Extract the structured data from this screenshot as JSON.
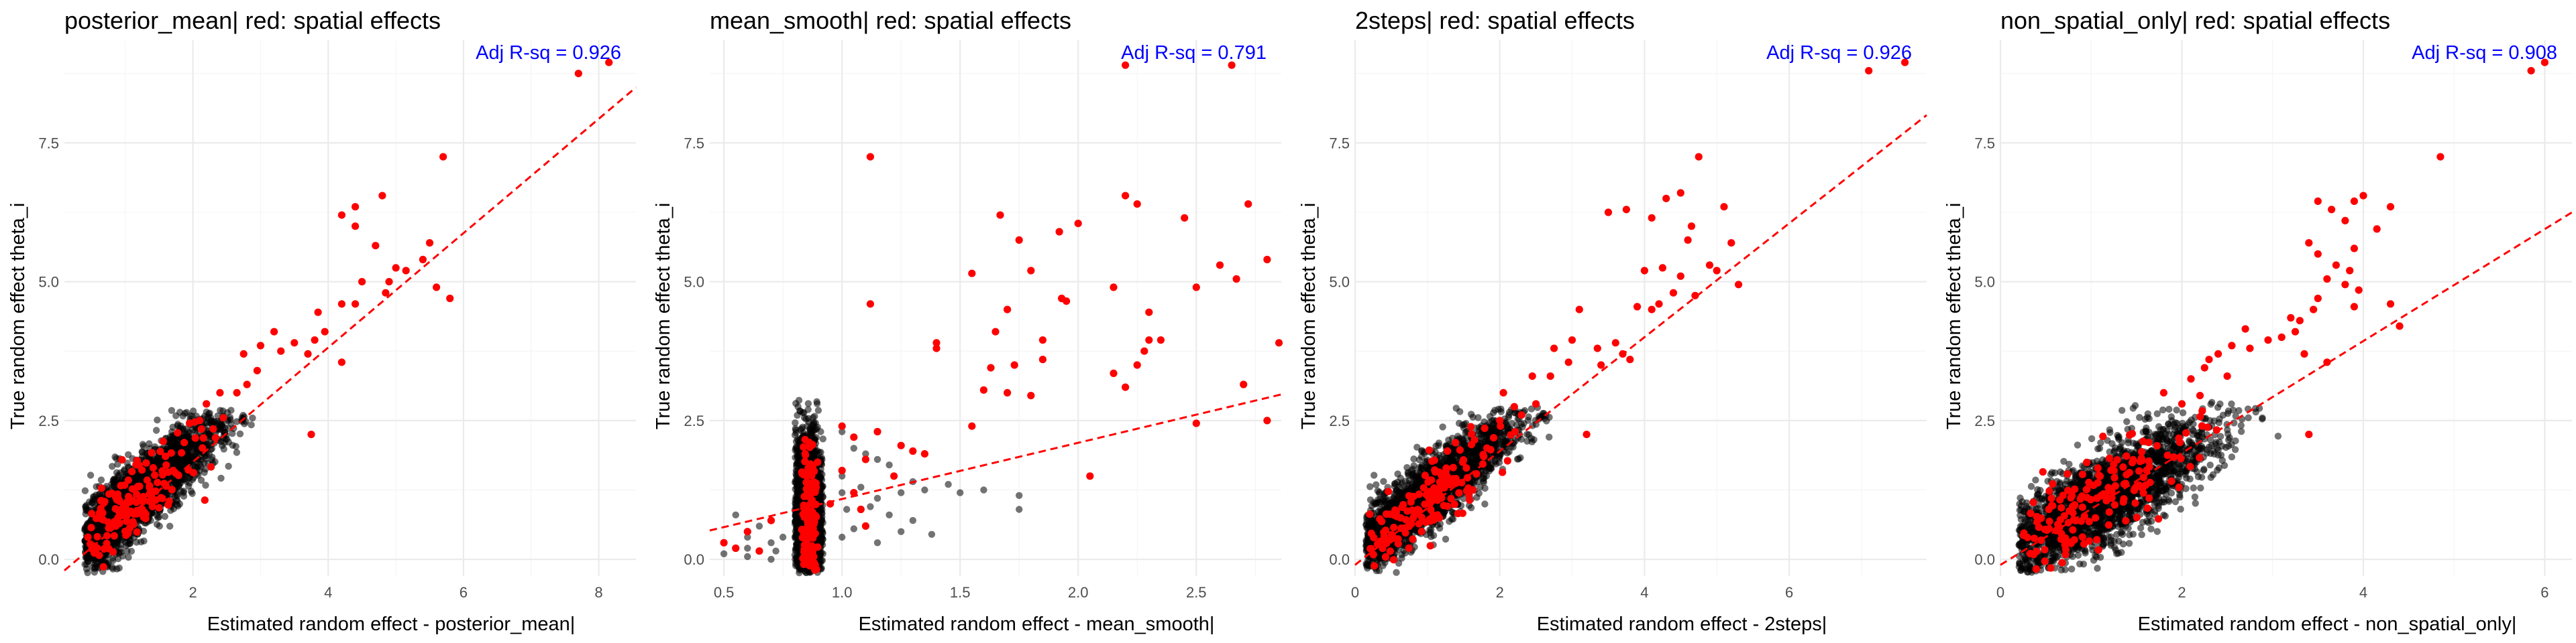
{
  "colors": {
    "highlight": "#ff0000",
    "base_points": "#000000",
    "fit_line": "#ff0000",
    "annotation": "#0000ff",
    "grid": "#ebebeb"
  },
  "chart_data": [
    {
      "type": "scatter",
      "title": "posterior_mean| red: spatial effects",
      "xlabel": "Estimated random effect - posterior_mean|",
      "ylabel": "True random effect theta_i",
      "annotation": "Adj R-sq = 0.926",
      "xlim": [
        0.1,
        8.55
      ],
      "ylim": [
        -0.3,
        9.35
      ],
      "x_ticks": [
        2,
        4,
        6,
        8
      ],
      "x_tick_labels": [
        "2",
        "4",
        "6",
        "8"
      ],
      "y_ticks": [
        0,
        2.5,
        5,
        7.5
      ],
      "y_tick_labels": [
        "0.0",
        "2.5",
        "5.0",
        "7.5"
      ],
      "fit_line": {
        "points": [
          [
            0.1,
            -0.2
          ],
          [
            8.55,
            8.5
          ]
        ],
        "style": "dashed"
      },
      "grid": true,
      "cloud": {
        "x_center": 1.0,
        "x_spread": 0.75,
        "x_min": 0.4,
        "x_max": 3.9,
        "intercept": -0.12,
        "slope": 1.05,
        "resid_sd": 0.35,
        "y_min": -0.25,
        "y_max": 2.7,
        "n": 2200
      },
      "red_cloud": {
        "x_center": 0.95,
        "x_spread": 0.55,
        "x_min": 0.42,
        "x_max": 2.6,
        "intercept": -0.1,
        "slope": 1.02,
        "resid_sd": 0.35,
        "y_min": -0.2,
        "y_max": 2.6,
        "n": 150
      },
      "red_points": [
        [
          7.7,
          8.75
        ],
        [
          8.15,
          8.95
        ],
        [
          5.7,
          7.25
        ],
        [
          4.8,
          6.55
        ],
        [
          4.4,
          6.35
        ],
        [
          4.2,
          6.2
        ],
        [
          4.4,
          6.0
        ],
        [
          4.7,
          5.65
        ],
        [
          5.5,
          5.7
        ],
        [
          5.0,
          5.25
        ],
        [
          5.15,
          5.2
        ],
        [
          4.9,
          5.0
        ],
        [
          5.4,
          5.4
        ],
        [
          4.5,
          5.0
        ],
        [
          4.4,
          4.6
        ],
        [
          4.2,
          4.6
        ],
        [
          5.6,
          4.9
        ],
        [
          5.8,
          4.7
        ],
        [
          4.85,
          4.8
        ],
        [
          3.85,
          4.45
        ],
        [
          3.95,
          4.1
        ],
        [
          3.2,
          4.1
        ],
        [
          3.8,
          3.95
        ],
        [
          3.0,
          3.85
        ],
        [
          2.75,
          3.7
        ],
        [
          3.5,
          3.9
        ],
        [
          3.7,
          3.7
        ],
        [
          3.3,
          3.75
        ],
        [
          4.2,
          3.55
        ],
        [
          2.95,
          3.4
        ],
        [
          2.8,
          3.15
        ],
        [
          2.65,
          3.0
        ],
        [
          2.4,
          3.0
        ],
        [
          3.75,
          2.25
        ],
        [
          2.2,
          2.8
        ],
        [
          2.45,
          2.55
        ],
        [
          2.1,
          2.5
        ],
        [
          2.3,
          2.35
        ],
        [
          1.95,
          2.45
        ]
      ]
    },
    {
      "type": "scatter",
      "title": "mean_smooth| red: spatial effects",
      "xlabel": "Estimated random effect - mean_smooth|",
      "ylabel": "True random effect theta_i",
      "annotation": "Adj R-sq = 0.791",
      "xlim": [
        0.44,
        2.86
      ],
      "ylim": [
        -0.3,
        9.35
      ],
      "x_ticks": [
        0.5,
        1.0,
        1.5,
        2.0,
        2.5
      ],
      "x_tick_labels": [
        "0.5",
        "1.0",
        "1.5",
        "2.0",
        "2.5"
      ],
      "y_ticks": [
        0,
        2.5,
        5,
        7.5
      ],
      "y_tick_labels": [
        "0.0",
        "2.5",
        "5.0",
        "7.5"
      ],
      "fit_line": {
        "points": [
          [
            0.44,
            0.52
          ],
          [
            2.86,
            2.97
          ]
        ],
        "style": "dashed"
      },
      "grid": true,
      "cloud": {
        "x_center": 0.855,
        "x_spread": 0.035,
        "x_min": 0.8,
        "x_max": 0.92,
        "intercept": 0.95,
        "slope": 0,
        "resid_sd": 0.7,
        "y_min": -0.25,
        "y_max": 2.9,
        "n": 1900
      },
      "red_cloud": {
        "x_center": 0.86,
        "x_spread": 0.02,
        "x_min": 0.82,
        "x_max": 0.9,
        "intercept": 0.9,
        "slope": 0,
        "resid_sd": 0.75,
        "y_min": -0.2,
        "y_max": 2.3,
        "n": 120
      },
      "red_points": [
        [
          1.12,
          7.25
        ],
        [
          2.2,
          8.9
        ],
        [
          2.65,
          8.9
        ],
        [
          2.2,
          6.55
        ],
        [
          2.25,
          6.4
        ],
        [
          2.72,
          6.4
        ],
        [
          2.45,
          6.15
        ],
        [
          1.67,
          6.2
        ],
        [
          2.0,
          6.05
        ],
        [
          1.75,
          5.75
        ],
        [
          1.92,
          5.9
        ],
        [
          1.55,
          5.15
        ],
        [
          1.8,
          5.2
        ],
        [
          1.93,
          4.7
        ],
        [
          1.95,
          4.65
        ],
        [
          2.15,
          4.9
        ],
        [
          2.5,
          4.9
        ],
        [
          2.6,
          5.3
        ],
        [
          2.67,
          5.05
        ],
        [
          2.8,
          5.4
        ],
        [
          1.12,
          4.6
        ],
        [
          1.7,
          4.5
        ],
        [
          1.65,
          4.1
        ],
        [
          2.3,
          4.45
        ],
        [
          1.4,
          3.9
        ],
        [
          1.4,
          3.8
        ],
        [
          1.85,
          3.95
        ],
        [
          1.85,
          3.6
        ],
        [
          1.73,
          3.5
        ],
        [
          1.63,
          3.45
        ],
        [
          2.3,
          3.95
        ],
        [
          2.35,
          3.95
        ],
        [
          2.28,
          3.75
        ],
        [
          2.25,
          3.5
        ],
        [
          2.85,
          3.9
        ],
        [
          1.6,
          3.05
        ],
        [
          1.7,
          3.0
        ],
        [
          1.8,
          2.95
        ],
        [
          2.15,
          3.35
        ],
        [
          2.2,
          3.1
        ],
        [
          2.7,
          3.15
        ],
        [
          1.55,
          2.4
        ],
        [
          1.05,
          2.2
        ],
        [
          1.15,
          2.3
        ],
        [
          1.25,
          2.05
        ],
        [
          1.3,
          1.95
        ],
        [
          1.35,
          1.9
        ],
        [
          1.1,
          1.8
        ],
        [
          2.5,
          2.45
        ],
        [
          2.8,
          2.5
        ],
        [
          2.05,
          1.5
        ],
        [
          1.0,
          1.6
        ],
        [
          1.05,
          1.2
        ],
        [
          0.95,
          1.0
        ],
        [
          1.0,
          2.4
        ],
        [
          1.22,
          1.5
        ],
        [
          1.08,
          0.9
        ],
        [
          1.1,
          0.6
        ],
        [
          0.6,
          0.5
        ],
        [
          0.7,
          0.7
        ],
        [
          0.5,
          0.3
        ],
        [
          0.55,
          0.2
        ],
        [
          0.65,
          0.15
        ]
      ],
      "extra_gray_points": [
        [
          1.0,
          2.3
        ],
        [
          1.05,
          2.0
        ],
        [
          1.1,
          1.9
        ],
        [
          1.15,
          1.8
        ],
        [
          1.2,
          1.7
        ],
        [
          1.0,
          1.5
        ],
        [
          1.08,
          1.3
        ],
        [
          1.15,
          1.1
        ],
        [
          1.25,
          1.2
        ],
        [
          1.3,
          1.4
        ],
        [
          1.35,
          1.25
        ],
        [
          1.45,
          1.35
        ],
        [
          1.5,
          1.2
        ],
        [
          1.6,
          1.25
        ],
        [
          1.75,
          1.15
        ],
        [
          1.38,
          0.45
        ],
        [
          1.75,
          0.9
        ],
        [
          1.0,
          1.2
        ],
        [
          1.02,
          0.9
        ],
        [
          1.12,
          0.95
        ],
        [
          1.2,
          0.8
        ],
        [
          1.3,
          0.7
        ],
        [
          1.0,
          0.4
        ],
        [
          1.05,
          0.55
        ],
        [
          1.15,
          0.3
        ],
        [
          1.25,
          0.5
        ],
        [
          0.6,
          0.2
        ],
        [
          0.55,
          0.8
        ],
        [
          0.65,
          0.6
        ],
        [
          0.7,
          0.3
        ],
        [
          0.5,
          0.1
        ],
        [
          0.6,
          0.05
        ],
        [
          0.7,
          0.0
        ],
        [
          0.75,
          0.4
        ],
        [
          0.6,
          0.4
        ],
        [
          0.72,
          0.15
        ]
      ]
    },
    {
      "type": "scatter",
      "title": "2steps| red: spatial effects",
      "xlabel": "Estimated random effect - 2steps|",
      "ylabel": "True random effect theta_i",
      "annotation": "Adj R-sq = 0.926",
      "xlim": [
        0,
        7.9
      ],
      "ylim": [
        -0.3,
        9.35
      ],
      "x_ticks": [
        0,
        2,
        4,
        6
      ],
      "x_tick_labels": [
        "0",
        "2",
        "4",
        "6"
      ],
      "y_ticks": [
        0,
        2.5,
        5,
        7.5
      ],
      "y_tick_labels": [
        "0.0",
        "2.5",
        "5.0",
        "7.5"
      ],
      "fit_line": {
        "points": [
          [
            0,
            -0.1
          ],
          [
            7.9,
            8.0
          ]
        ],
        "style": "dashed"
      },
      "grid": true,
      "cloud": {
        "x_center": 0.8,
        "x_spread": 0.75,
        "x_min": 0.15,
        "x_max": 3.2,
        "intercept": 0.1,
        "slope": 1.05,
        "resid_sd": 0.33,
        "y_min": -0.25,
        "y_max": 2.75,
        "n": 2200
      },
      "red_cloud": {
        "x_center": 0.8,
        "x_spread": 0.6,
        "x_min": 0.2,
        "x_max": 2.3,
        "intercept": 0.1,
        "slope": 1.02,
        "resid_sd": 0.33,
        "y_min": -0.2,
        "y_max": 2.6,
        "n": 150
      },
      "red_points": [
        [
          7.1,
          8.8
        ],
        [
          7.6,
          8.95
        ],
        [
          4.75,
          7.25
        ],
        [
          4.5,
          6.6
        ],
        [
          4.3,
          6.5
        ],
        [
          3.5,
          6.25
        ],
        [
          3.75,
          6.3
        ],
        [
          4.1,
          6.15
        ],
        [
          4.65,
          6.0
        ],
        [
          5.1,
          6.35
        ],
        [
          4.6,
          5.75
        ],
        [
          5.2,
          5.7
        ],
        [
          4.0,
          5.2
        ],
        [
          4.5,
          5.1
        ],
        [
          4.25,
          5.25
        ],
        [
          4.4,
          4.8
        ],
        [
          4.7,
          4.75
        ],
        [
          4.9,
          5.3
        ],
        [
          5.0,
          5.2
        ],
        [
          5.3,
          4.95
        ],
        [
          4.2,
          4.6
        ],
        [
          3.9,
          4.55
        ],
        [
          4.1,
          4.5
        ],
        [
          3.1,
          4.5
        ],
        [
          3.0,
          3.95
        ],
        [
          3.35,
          3.8
        ],
        [
          3.6,
          3.9
        ],
        [
          3.7,
          3.7
        ],
        [
          3.8,
          3.6
        ],
        [
          3.4,
          3.5
        ],
        [
          2.75,
          3.8
        ],
        [
          2.95,
          3.55
        ],
        [
          2.7,
          3.3
        ],
        [
          2.45,
          3.3
        ],
        [
          3.2,
          2.25
        ],
        [
          2.0,
          2.5
        ],
        [
          2.2,
          2.75
        ],
        [
          2.5,
          2.8
        ],
        [
          2.05,
          3.0
        ],
        [
          2.3,
          2.6
        ]
      ]
    },
    {
      "type": "scatter",
      "title": "non_spatial_only| red: spatial effects",
      "xlabel": "Estimated random effect - non_spatial_only|",
      "ylabel": "True random effect theta_i",
      "annotation": "Adj R-sq = 0.908",
      "xlim": [
        0,
        6.3
      ],
      "ylim": [
        -0.3,
        9.35
      ],
      "x_ticks": [
        0,
        2,
        4,
        6
      ],
      "x_tick_labels": [
        "0",
        "2",
        "4",
        "6"
      ],
      "y_ticks": [
        0,
        2.5,
        5,
        7.5
      ],
      "y_tick_labels": [
        "0.0",
        "2.5",
        "5.0",
        "7.5"
      ],
      "fit_line": {
        "points": [
          [
            0,
            -0.1
          ],
          [
            6.3,
            6.25
          ]
        ],
        "style": "dashed"
      },
      "grid": true,
      "cloud": {
        "x_center": 1.05,
        "x_spread": 0.65,
        "x_min": 0.2,
        "x_max": 3.4,
        "intercept": 0.05,
        "slope": 0.92,
        "resid_sd": 0.42,
        "y_min": -0.25,
        "y_max": 2.85,
        "n": 2200
      },
      "red_cloud": {
        "x_center": 0.95,
        "x_spread": 0.55,
        "x_min": 0.25,
        "x_max": 2.8,
        "intercept": 0.05,
        "slope": 0.95,
        "resid_sd": 0.4,
        "y_min": -0.2,
        "y_max": 2.9,
        "n": 160
      },
      "red_points": [
        [
          5.85,
          8.8
        ],
        [
          6.0,
          8.95
        ],
        [
          4.85,
          7.25
        ],
        [
          3.5,
          6.45
        ],
        [
          3.65,
          6.3
        ],
        [
          3.9,
          6.45
        ],
        [
          3.8,
          6.1
        ],
        [
          4.0,
          6.55
        ],
        [
          4.3,
          6.35
        ],
        [
          4.15,
          5.95
        ],
        [
          3.9,
          5.6
        ],
        [
          3.4,
          5.7
        ],
        [
          3.5,
          5.5
        ],
        [
          3.7,
          5.3
        ],
        [
          3.6,
          5.05
        ],
        [
          3.8,
          4.95
        ],
        [
          3.85,
          5.2
        ],
        [
          3.95,
          4.85
        ],
        [
          3.5,
          4.7
        ],
        [
          3.9,
          4.55
        ],
        [
          4.3,
          4.6
        ],
        [
          4.4,
          4.2
        ],
        [
          3.2,
          4.35
        ],
        [
          3.45,
          4.5
        ],
        [
          3.3,
          4.3
        ],
        [
          2.7,
          4.15
        ],
        [
          3.1,
          4.0
        ],
        [
          3.25,
          4.1
        ],
        [
          2.95,
          3.95
        ],
        [
          2.55,
          3.85
        ],
        [
          2.75,
          3.8
        ],
        [
          3.35,
          3.7
        ],
        [
          2.4,
          3.7
        ],
        [
          3.6,
          3.55
        ],
        [
          2.25,
          3.45
        ],
        [
          2.3,
          3.6
        ],
        [
          2.5,
          3.3
        ],
        [
          2.1,
          3.25
        ],
        [
          3.4,
          2.25
        ],
        [
          2.2,
          2.95
        ],
        [
          1.8,
          3.0
        ],
        [
          2.0,
          2.8
        ]
      ]
    }
  ]
}
